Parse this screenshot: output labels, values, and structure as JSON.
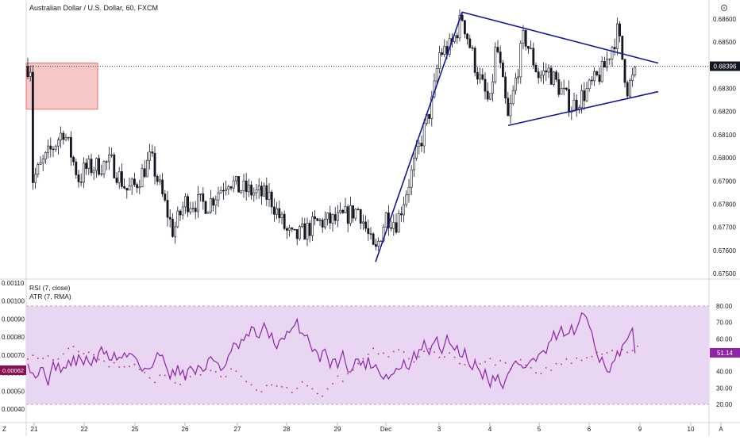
{
  "title": "Australian Dollar / U.S. Dollar, 60, FXCM",
  "indicators": {
    "rsi_label": "RSI (7, close)",
    "atr_label": "ATR (7, RMA)"
  },
  "price_axis": {
    "ticks": [
      "0.68600",
      "0.68500",
      "0.68400",
      "0.68300",
      "0.68200",
      "0.68100",
      "0.68000",
      "0.67900",
      "0.67800",
      "0.67700",
      "0.67600",
      "0.67500"
    ],
    "current": "0.68396"
  },
  "indicator_axis": {
    "left_ticks": [
      "0.00110",
      "0.00100",
      "0.00090",
      "0.00080",
      "0.00070",
      "0.00060",
      "0.00050",
      "0.00040"
    ],
    "right_ticks": [
      "80.00",
      "70.00",
      "60.00",
      "50.00",
      "40.00",
      "30.00",
      "20.00"
    ],
    "atr_current": "0.00062",
    "rsi_current": "51.14"
  },
  "time_axis": {
    "labels": [
      "21",
      "22",
      "25",
      "26",
      "27",
      "28",
      "29",
      "Dec",
      "3",
      "4",
      "5",
      "6",
      "9",
      "10",
      "A"
    ],
    "corner_left": "Z"
  },
  "colors": {
    "candle": "#131722",
    "trendline": "#1515a0",
    "zone_fill": "#f4b9b9",
    "zone_border": "#e05a5a",
    "rsi_line": "#8e24aa",
    "rsi_band": "#e8d6f3",
    "atr_dots": "#c0186a",
    "badge_dark": "#131722",
    "badge_rsi": "#8e24aa",
    "badge_atr": "#880e4f"
  },
  "chart_data": [
    {
      "type": "candlestick",
      "title": "Australian Dollar / U.S. Dollar, 60, FXCM",
      "ylim": [
        0.675,
        0.6865
      ],
      "x": [
        "Nov 21",
        "Nov 22",
        "Nov 25",
        "Nov 26",
        "Nov 27",
        "Nov 28",
        "Nov 29",
        "Dec 2",
        "Dec 3",
        "Dec 4",
        "Dec 5",
        "Dec 6",
        "Dec 9"
      ],
      "close_path": [
        {
          "x": "Nov 21",
          "y": 0.679
        },
        {
          "x": "Nov 22",
          "y": 0.6795
        },
        {
          "x": "Nov 25",
          "y": 0.6788
        },
        {
          "x": "Nov 26",
          "y": 0.6781
        },
        {
          "x": "Nov 27",
          "y": 0.6787
        },
        {
          "x": "Nov 28",
          "y": 0.6768
        },
        {
          "x": "Nov 29",
          "y": 0.6773
        },
        {
          "x": "Dec 2",
          "y": 0.6775
        },
        {
          "x": "Dec 3",
          "y": 0.6845
        },
        {
          "x": "Dec 4",
          "y": 0.6822
        },
        {
          "x": "Dec 5",
          "y": 0.6835
        },
        {
          "x": "Dec 6",
          "y": 0.683
        },
        {
          "x": "Dec 9",
          "y": 0.68396
        }
      ],
      "last_price": 0.68396,
      "drawings": {
        "rally_line": [
          {
            "x": "Nov 29",
            "y": 0.6755
          },
          {
            "x": "Dec 3",
            "y": 0.6863
          }
        ],
        "triangle_upper": [
          {
            "x": "Dec 3",
            "y": 0.6863
          },
          {
            "x": "Dec 9",
            "y": 0.6843
          }
        ],
        "triangle_lower": [
          {
            "x": "Dec 4",
            "y": 0.6814
          },
          {
            "x": "Dec 9",
            "y": 0.683
          }
        ],
        "supply_zone": {
          "y_top": 0.6841,
          "y_bottom": 0.6821
        }
      }
    },
    {
      "type": "line",
      "title": "RSI (7, close)",
      "ylim": [
        15,
        95
      ],
      "bands": [
        20,
        80
      ],
      "current": 51.14
    },
    {
      "type": "scatter",
      "title": "ATR (7, RMA)",
      "ylim": [
        0.00035,
        0.00115
      ],
      "current": 0.00062
    }
  ]
}
